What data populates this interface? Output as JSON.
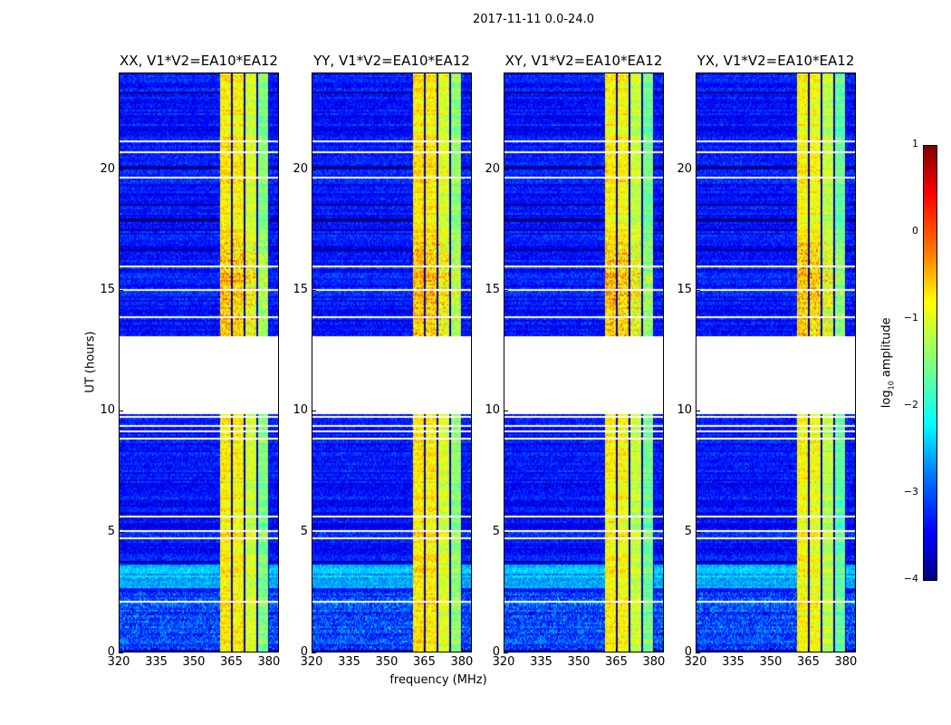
{
  "chart_data": {
    "type": "heatmap",
    "title": "2017-11-11 0.0-24.0",
    "xlabel": "frequency (MHz)",
    "ylabel": "UT (hours)",
    "xlim": [
      320,
      384
    ],
    "ylim": [
      0,
      24
    ],
    "xticks": [
      "320",
      "335",
      "350",
      "365",
      "380"
    ],
    "xtick_values": [
      320,
      335,
      350,
      365,
      380
    ],
    "yticks": [
      "0",
      "5",
      "10",
      "15",
      "20"
    ],
    "ytick_values": [
      0,
      5,
      10,
      15,
      20
    ],
    "panels": [
      {
        "title": "XX, V1*V2=EA10*EA12",
        "band_gain": 1.0
      },
      {
        "title": "YY, V1*V2=EA10*EA12",
        "band_gain": 1.05
      },
      {
        "title": "XY, V1*V2=EA10*EA12",
        "band_gain": 0.95
      },
      {
        "title": "YX, V1*V2=EA10*EA12",
        "band_gain": 0.9
      }
    ],
    "no_data_hours": [
      9.9,
      13.0
    ],
    "rfi_band_mhz": [
      360.7,
      380.4
    ],
    "background_log10": -3.3,
    "band_log10": -1.0,
    "colorbar": {
      "label_main": "log",
      "label_sub": "10",
      "label_rest": " amplitude",
      "colormap": "jet",
      "range": [
        -4,
        1
      ],
      "ticks": [
        "1",
        "0",
        "−1",
        "−2",
        "−3",
        "−4"
      ],
      "tick_values": [
        1,
        0,
        -1,
        -2,
        -3,
        -4
      ]
    }
  }
}
